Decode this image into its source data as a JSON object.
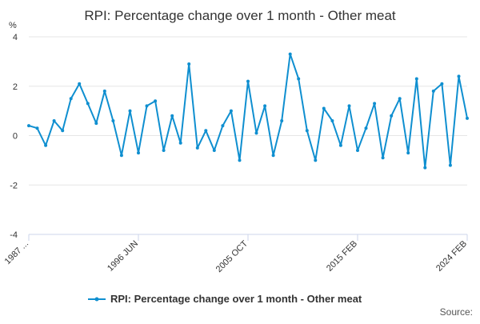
{
  "chart_data": {
    "type": "line",
    "title": "RPI: Percentage change over 1 month - Other meat",
    "ylabel": "%",
    "xlabel": "",
    "ylim": [
      -4,
      4
    ],
    "yticks": [
      -4,
      -2,
      0,
      2,
      4
    ],
    "xtick_labels": [
      "1987 ...",
      "1996 JUN",
      "2005 OCT",
      "2015 FEB",
      "2024 FEB"
    ],
    "grid": true,
    "legend_position": "bottom",
    "source_label": "Source:",
    "series": [
      {
        "name": "RPI: Percentage change over 1 month - Other meat",
        "color": "#0f8fd0",
        "x": [
          "1987 JAN",
          "1988 JAN",
          "1989 JAN",
          "1989 JUL",
          "1990 JAN",
          "1990 JUL",
          "1991 JAN",
          "1991 JUN",
          "1992 JAN",
          "1992 JUL",
          "1993 JAN",
          "1994 JAN",
          "1995 JAN",
          "1996 JAN",
          "1996 JUN",
          "1997 JAN",
          "1998 JAN",
          "1999 JAN",
          "2000 JAN",
          "2000 FEB",
          "2000 MAR",
          "2001 JAN",
          "2002 JAN",
          "2003 JAN",
          "2004 JAN",
          "2005 JAN",
          "2005 MAY",
          "2005 OCT",
          "2006 JUN",
          "2007 JAN",
          "2008 JAN",
          "2008 FEB",
          "2008 JUN",
          "2009 JAN",
          "2010 JAN",
          "2011 JAN",
          "2012 JAN",
          "2013 JAN",
          "2014 JAN",
          "2015 FEB",
          "2016 JAN",
          "2017 JAN",
          "2018 JAN",
          "2019 JAN",
          "2020 JAN",
          "2020 OCT",
          "2021 JAN",
          "2021 OCT",
          "2022 JAN",
          "2022 JUL",
          "2023 JAN",
          "2023 JUN",
          "2024 FEB"
        ],
        "values": [
          0.4,
          0.3,
          -0.4,
          0.6,
          0.2,
          1.5,
          2.1,
          1.3,
          0.5,
          1.8,
          0.6,
          -0.8,
          1.0,
          -0.7,
          1.2,
          1.4,
          -0.6,
          0.8,
          -0.3,
          2.9,
          -0.5,
          0.2,
          -0.6,
          0.4,
          1.0,
          -1.0,
          2.2,
          0.1,
          1.2,
          -0.8,
          0.6,
          3.3,
          2.3,
          0.2,
          -1.0,
          1.1,
          0.6,
          -0.4,
          1.2,
          -0.6,
          0.3,
          1.3,
          -0.9,
          0.8,
          1.5,
          -0.7,
          2.3,
          -1.3,
          1.8,
          2.1,
          -1.2,
          2.4,
          0.7
        ]
      }
    ]
  }
}
